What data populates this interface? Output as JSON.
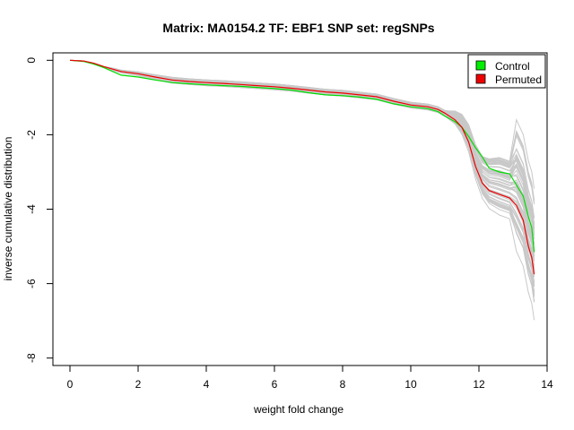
{
  "chart_data": {
    "type": "line",
    "title": "Matrix: MA0154.2 TF: EBF1 SNP set: regSNPs",
    "xlabel": "weight fold change",
    "ylabel": "inverse cumulative distribution",
    "xlim": [
      -0.5,
      14
    ],
    "ylim": [
      -8.2,
      0.2
    ],
    "xticks": [
      0,
      2,
      4,
      6,
      8,
      10,
      12,
      14
    ],
    "yticks": [
      0,
      -2,
      -4,
      -6,
      -8
    ],
    "grid": false,
    "legend": {
      "position": "top-right",
      "entries": [
        {
          "label": "Control",
          "color": "#00ee00"
        },
        {
          "label": "Permuted",
          "color": "#ee0000"
        }
      ]
    },
    "background_series_color": "#c8c8c8",
    "series": [
      {
        "name": "Control",
        "color": "#00dd00",
        "x": [
          0,
          0.4,
          0.7,
          1.0,
          1.3,
          1.5,
          2.0,
          2.5,
          3.0,
          3.5,
          4.0,
          4.5,
          5.0,
          5.5,
          6.0,
          6.5,
          7.0,
          7.5,
          8.0,
          8.5,
          9.0,
          9.5,
          10.0,
          10.5,
          10.8,
          11.0,
          11.3,
          11.5,
          11.7,
          11.9,
          12.1,
          12.3,
          12.6,
          12.9,
          13.1,
          13.3,
          13.45,
          13.55,
          13.62
        ],
        "y": [
          0,
          -0.03,
          -0.1,
          -0.2,
          -0.32,
          -0.4,
          -0.45,
          -0.53,
          -0.6,
          -0.63,
          -0.66,
          -0.68,
          -0.7,
          -0.73,
          -0.76,
          -0.8,
          -0.87,
          -0.93,
          -0.95,
          -0.99,
          -1.05,
          -1.17,
          -1.25,
          -1.3,
          -1.38,
          -1.5,
          -1.65,
          -1.8,
          -2.05,
          -2.35,
          -2.6,
          -2.9,
          -3.0,
          -3.05,
          -3.35,
          -3.65,
          -4.2,
          -4.5,
          -5.15
        ]
      },
      {
        "name": "Permuted",
        "color": "#ee0000",
        "x": [
          0,
          0.4,
          0.7,
          1.0,
          1.3,
          1.5,
          2.0,
          2.5,
          3.0,
          3.5,
          4.0,
          4.5,
          5.0,
          5.5,
          6.0,
          6.5,
          7.0,
          7.5,
          8.0,
          8.5,
          9.0,
          9.5,
          10.0,
          10.5,
          10.8,
          11.0,
          11.3,
          11.5,
          11.7,
          11.9,
          12.1,
          12.3,
          12.6,
          12.9,
          13.1,
          13.3,
          13.45,
          13.55,
          13.62
        ],
        "y": [
          0,
          -0.02,
          -0.08,
          -0.17,
          -0.25,
          -0.3,
          -0.36,
          -0.45,
          -0.53,
          -0.57,
          -0.6,
          -0.62,
          -0.65,
          -0.68,
          -0.71,
          -0.75,
          -0.8,
          -0.85,
          -0.88,
          -0.93,
          -0.98,
          -1.1,
          -1.2,
          -1.25,
          -1.32,
          -1.42,
          -1.6,
          -1.8,
          -2.2,
          -2.85,
          -3.3,
          -3.5,
          -3.6,
          -3.7,
          -3.9,
          -4.3,
          -5.0,
          -5.3,
          -5.75
        ]
      }
    ]
  }
}
